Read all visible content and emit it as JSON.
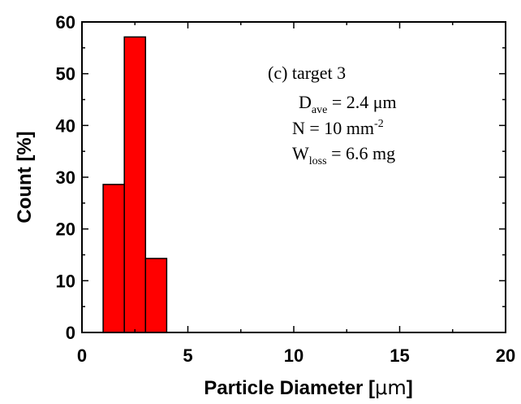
{
  "chart_data": {
    "type": "bar",
    "title": "",
    "xlabel_main": "Particle Diameter [",
    "xlabel_unit": "μm",
    "xlabel_close": "]",
    "ylabel": "Count [%]",
    "xlim": [
      0,
      20
    ],
    "ylim": [
      0,
      60
    ],
    "x_ticks": [
      "0",
      "5",
      "10",
      "15",
      "20"
    ],
    "y_ticks": [
      "0",
      "10",
      "20",
      "30",
      "40",
      "50",
      "60"
    ],
    "grid": false,
    "bins": [
      {
        "x0": 1,
        "x1": 2,
        "value": 28.6
      },
      {
        "x0": 2,
        "x1": 3,
        "value": 57.1
      },
      {
        "x0": 3,
        "x1": 4,
        "value": 14.3
      }
    ],
    "bar_color": "#ff0000",
    "annotation": {
      "title": "(c) target 3",
      "d_main": "D",
      "d_sub": "ave",
      "d_rest": " = 2.4 μm",
      "n_main": "N = 10 mm",
      "n_sup": "-2",
      "w_main": "W",
      "w_sub": "loss",
      "w_rest": " = 6.6 mg"
    }
  }
}
